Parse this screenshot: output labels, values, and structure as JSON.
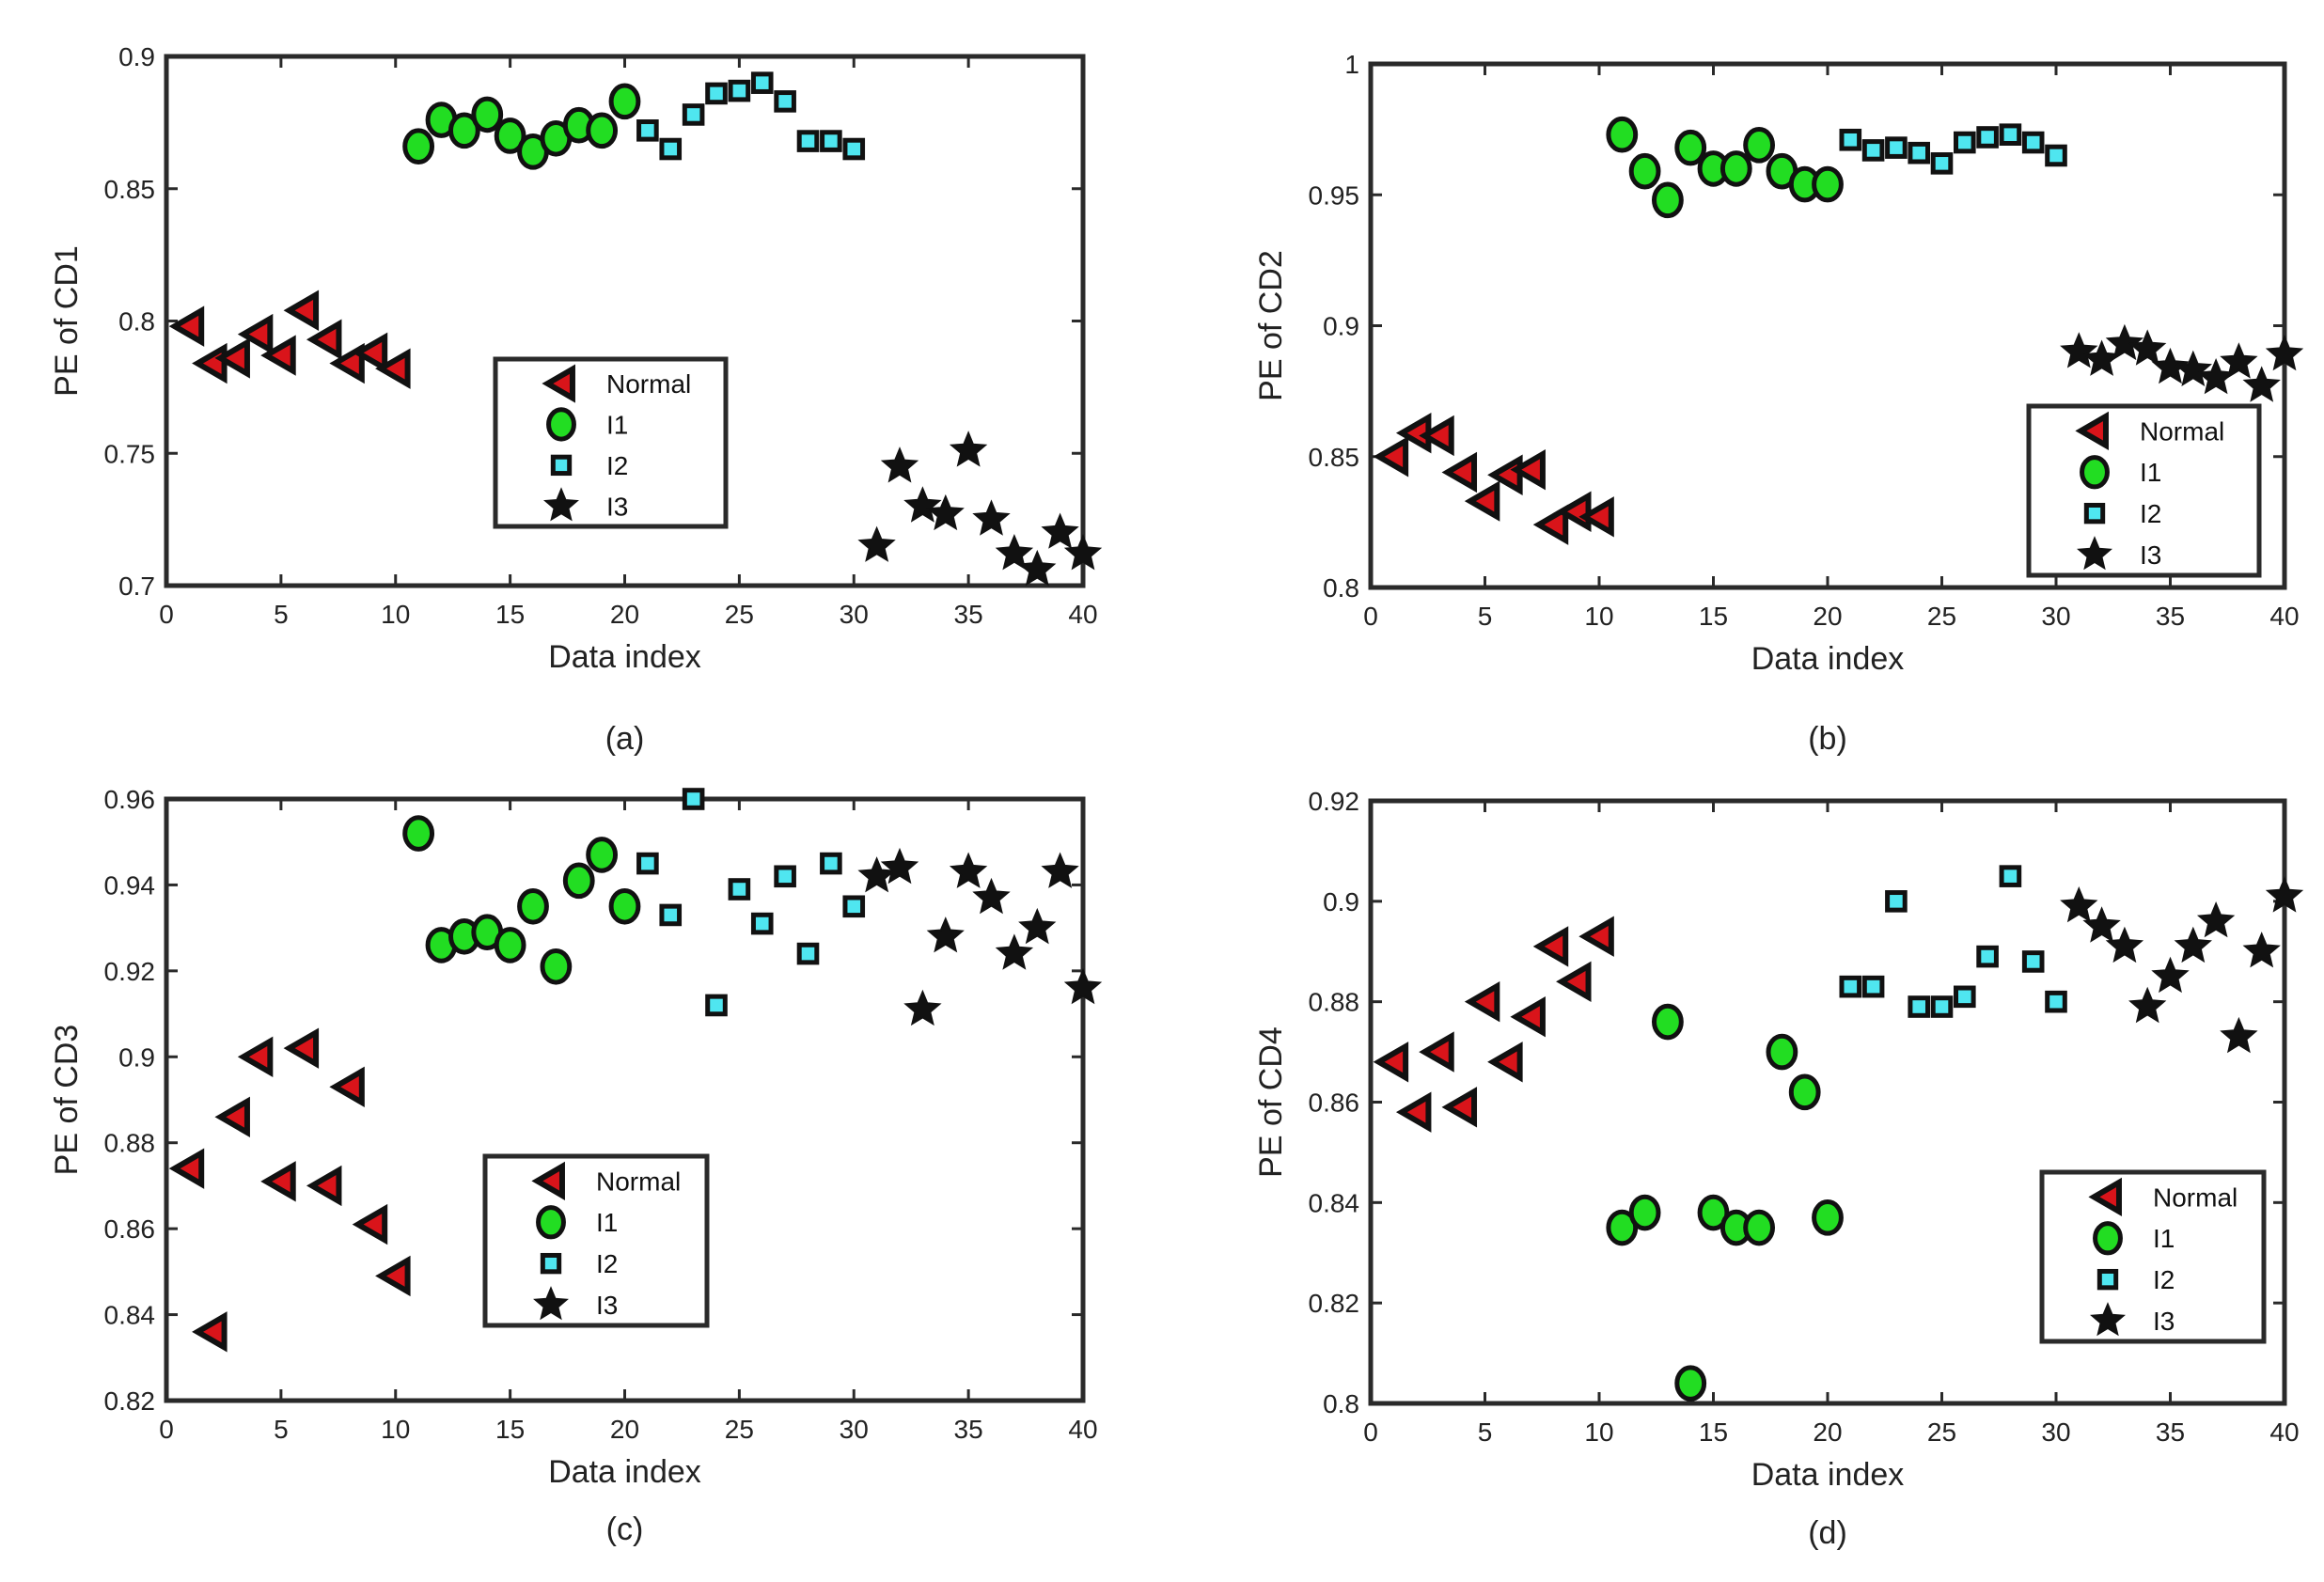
{
  "chart_data": [
    {
      "type": "scatter",
      "caption": "(a)",
      "xlabel": "Data index",
      "ylabel": "PE of CD1",
      "xlim": [
        0,
        40
      ],
      "ylim": [
        0.7,
        0.9
      ],
      "xticks": [
        0,
        5,
        10,
        15,
        20,
        25,
        30,
        35,
        40
      ],
      "yticks": [
        0.7,
        0.75,
        0.8,
        0.85,
        0.9
      ],
      "ytick_labels": [
        "0.7",
        "0.75",
        "0.8",
        "0.85",
        "0.9"
      ],
      "legend_position": "center",
      "series": [
        {
          "name": "Normal",
          "x": [
            1,
            2,
            3,
            4,
            5,
            6,
            7,
            8,
            9,
            10
          ],
          "values": [
            0.798,
            0.784,
            0.786,
            0.795,
            0.787,
            0.804,
            0.793,
            0.784,
            0.788,
            0.782
          ]
        },
        {
          "name": "I1",
          "x": [
            11,
            12,
            13,
            14,
            15,
            16,
            17,
            18,
            19,
            20
          ],
          "values": [
            0.866,
            0.876,
            0.872,
            0.878,
            0.87,
            0.864,
            0.869,
            0.874,
            0.872,
            0.883
          ]
        },
        {
          "name": "I2",
          "x": [
            21,
            22,
            23,
            24,
            25,
            26,
            27,
            28,
            29,
            30
          ],
          "values": [
            0.872,
            0.865,
            0.878,
            0.886,
            0.887,
            0.89,
            0.883,
            0.868,
            0.868,
            0.865
          ]
        },
        {
          "name": "I3",
          "x": [
            31,
            32,
            33,
            34,
            35,
            36,
            37,
            38,
            39,
            40
          ],
          "values": [
            0.715,
            0.745,
            0.73,
            0.727,
            0.751,
            0.725,
            0.712,
            0.706,
            0.72,
            0.712
          ]
        }
      ]
    },
    {
      "type": "scatter",
      "caption": "(b)",
      "xlabel": "Data index",
      "ylabel": "PE of CD2",
      "xlim": [
        0,
        40
      ],
      "ylim": [
        0.8,
        1.0
      ],
      "xticks": [
        0,
        5,
        10,
        15,
        20,
        25,
        30,
        35,
        40
      ],
      "yticks": [
        0.8,
        0.85,
        0.9,
        0.95,
        1.0
      ],
      "ytick_labels": [
        "0.8",
        "0.85",
        "0.9",
        "0.95",
        "1"
      ],
      "legend_position": "lower-right",
      "series": [
        {
          "name": "Normal",
          "x": [
            1,
            2,
            3,
            4,
            5,
            6,
            7,
            8,
            9,
            10
          ],
          "values": [
            0.85,
            0.859,
            0.858,
            0.844,
            0.833,
            0.843,
            0.845,
            0.824,
            0.829,
            0.827
          ]
        },
        {
          "name": "I1",
          "x": [
            11,
            12,
            13,
            14,
            15,
            16,
            17,
            18,
            19,
            20
          ],
          "values": [
            0.973,
            0.959,
            0.948,
            0.968,
            0.96,
            0.96,
            0.969,
            0.959,
            0.954,
            0.954
          ]
        },
        {
          "name": "I2",
          "x": [
            21,
            22,
            23,
            24,
            25,
            26,
            27,
            28,
            29,
            30
          ],
          "values": [
            0.971,
            0.967,
            0.968,
            0.966,
            0.962,
            0.97,
            0.972,
            0.973,
            0.97,
            0.965
          ]
        },
        {
          "name": "I3",
          "x": [
            31,
            32,
            33,
            34,
            35,
            36,
            37,
            38,
            39,
            40
          ],
          "values": [
            0.89,
            0.887,
            0.893,
            0.891,
            0.884,
            0.883,
            0.88,
            0.886,
            0.877,
            0.889
          ]
        }
      ]
    },
    {
      "type": "scatter",
      "caption": "(c)",
      "xlabel": "Data index",
      "ylabel": "PE of CD3",
      "xlim": [
        0,
        40
      ],
      "ylim": [
        0.82,
        0.96
      ],
      "xticks": [
        0,
        5,
        10,
        15,
        20,
        25,
        30,
        35,
        40
      ],
      "yticks": [
        0.82,
        0.84,
        0.86,
        0.88,
        0.9,
        0.92,
        0.94,
        0.96
      ],
      "ytick_labels": [
        "0.82",
        "0.84",
        "0.86",
        "0.88",
        "0.9",
        "0.92",
        "0.94",
        "0.96"
      ],
      "legend_position": "lower-center",
      "series": [
        {
          "name": "Normal",
          "x": [
            1,
            2,
            3,
            4,
            5,
            6,
            7,
            8,
            9,
            10
          ],
          "values": [
            0.874,
            0.836,
            0.886,
            0.9,
            0.871,
            0.902,
            0.87,
            0.893,
            0.861,
            0.849
          ]
        },
        {
          "name": "I1",
          "x": [
            11,
            12,
            13,
            14,
            15,
            16,
            17,
            18,
            19,
            20
          ],
          "values": [
            0.952,
            0.926,
            0.928,
            0.929,
            0.926,
            0.935,
            0.921,
            0.941,
            0.947,
            0.935
          ]
        },
        {
          "name": "I2",
          "x": [
            21,
            22,
            23,
            24,
            25,
            26,
            27,
            28,
            29,
            30
          ],
          "values": [
            0.945,
            0.933,
            0.96,
            0.912,
            0.939,
            0.931,
            0.942,
            0.924,
            0.945,
            0.935
          ]
        },
        {
          "name": "I3",
          "x": [
            31,
            32,
            33,
            34,
            35,
            36,
            37,
            38,
            39,
            40
          ],
          "values": [
            0.942,
            0.944,
            0.911,
            0.928,
            0.943,
            0.937,
            0.924,
            0.93,
            0.943,
            0.916
          ]
        }
      ]
    },
    {
      "type": "scatter",
      "caption": "(d)",
      "xlabel": "Data index",
      "ylabel": "PE of CD4",
      "xlim": [
        0,
        40
      ],
      "ylim": [
        0.8,
        0.92
      ],
      "xticks": [
        0,
        5,
        10,
        15,
        20,
        25,
        30,
        35,
        40
      ],
      "yticks": [
        0.8,
        0.82,
        0.84,
        0.86,
        0.88,
        0.9,
        0.92
      ],
      "ytick_labels": [
        "0.8",
        "0.82",
        "0.84",
        "0.86",
        "0.88",
        "0.9",
        "0.92"
      ],
      "legend_position": "lower-right",
      "series": [
        {
          "name": "Normal",
          "x": [
            1,
            2,
            3,
            4,
            5,
            6,
            7,
            8,
            9,
            10
          ],
          "values": [
            0.868,
            0.858,
            0.87,
            0.859,
            0.88,
            0.868,
            0.877,
            0.891,
            0.884,
            0.893
          ]
        },
        {
          "name": "I1",
          "x": [
            11,
            12,
            13,
            14,
            15,
            16,
            17,
            18,
            19,
            20
          ],
          "values": [
            0.835,
            0.838,
            0.876,
            0.804,
            0.838,
            0.835,
            0.835,
            0.87,
            0.862,
            0.837
          ]
        },
        {
          "name": "I2",
          "x": [
            21,
            22,
            23,
            24,
            25,
            26,
            27,
            28,
            29,
            30
          ],
          "values": [
            0.883,
            0.883,
            0.9,
            0.879,
            0.879,
            0.881,
            0.889,
            0.905,
            0.888,
            0.88
          ]
        },
        {
          "name": "I3",
          "x": [
            31,
            32,
            33,
            34,
            35,
            36,
            37,
            38,
            39,
            40
          ],
          "values": [
            0.899,
            0.895,
            0.891,
            0.879,
            0.885,
            0.891,
            0.896,
            0.873,
            0.89,
            0.901
          ]
        }
      ]
    }
  ],
  "legend_labels": [
    "Normal",
    "I1",
    "I2",
    "I3"
  ],
  "marker_colors": {
    "Normal": "#d9141a",
    "I1": "#22dd22",
    "I2": "#4fe6f0",
    "I3": "#111111",
    "edge": "#111111"
  }
}
